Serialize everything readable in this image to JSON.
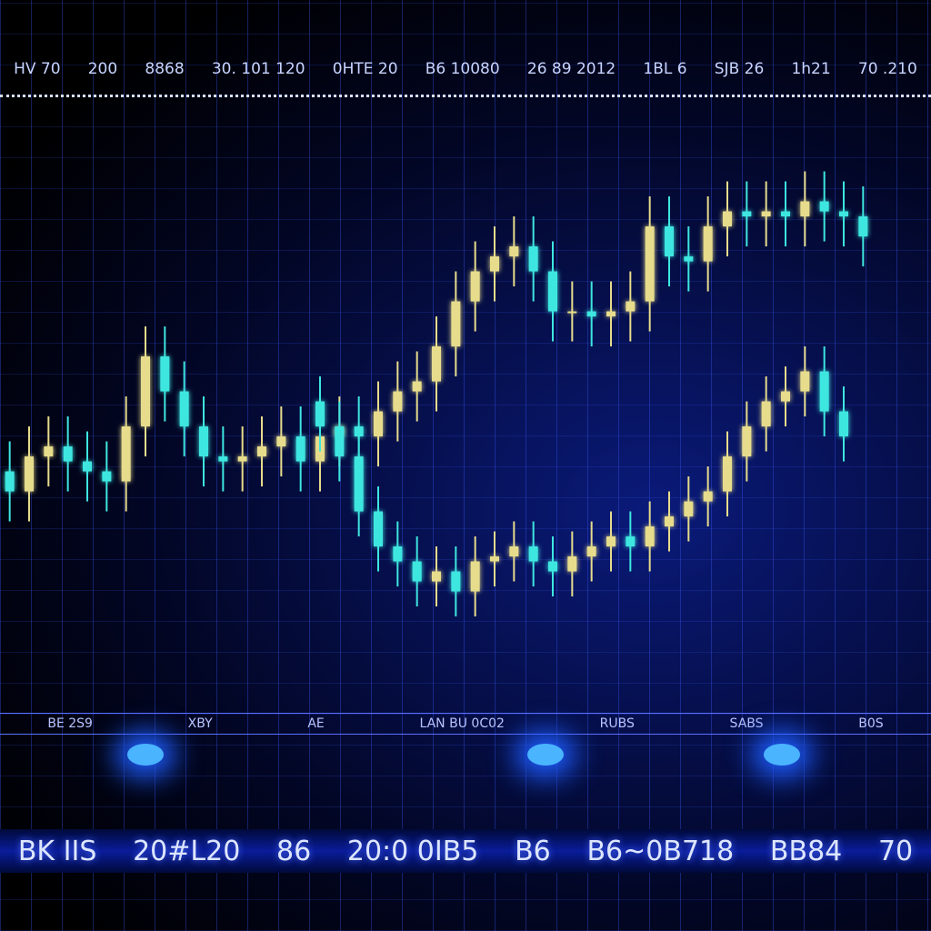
{
  "top_bar": [
    "HV 70",
    "200",
    "8868",
    "30. 101 120",
    "0HTE 20",
    "B6 10080",
    "26 89 2012",
    "1BL 6",
    "SJB 26",
    "1h21",
    "70 .210"
  ],
  "info_strip": [
    "BE 2S9",
    "XBY",
    "AE",
    "LAN BU 0C02",
    "RUBS",
    "SABS",
    "B0S"
  ],
  "bottom_bar": [
    "BK IIS",
    "20#L20",
    "86",
    "20:0 0IB5",
    "B6",
    "B6~0B718",
    "BB84",
    "70"
  ],
  "chart_data": {
    "type": "candlestick",
    "categories": [
      null,
      null,
      null,
      null,
      null,
      null,
      null,
      null,
      null,
      null,
      null,
      null,
      null,
      null,
      null,
      null,
      null,
      null,
      null,
      null,
      null,
      null,
      null,
      null,
      null,
      null,
      null,
      null,
      null,
      null,
      null,
      null,
      null,
      null,
      null,
      null,
      null,
      null,
      null,
      null,
      null,
      null,
      null,
      null,
      null
    ],
    "ylim": [
      0,
      100
    ],
    "up_color": "#e6dc8c",
    "down_color": "#3ee6e0",
    "series": [
      {
        "open": [
          33,
          29,
          36,
          38,
          35,
          33,
          31,
          42,
          56,
          49,
          42,
          36,
          35,
          36,
          38,
          40,
          35,
          40,
          42,
          40,
          45,
          49,
          51,
          58,
          67,
          73,
          76,
          78,
          73,
          65,
          65,
          64,
          65,
          67,
          82,
          76,
          75,
          82,
          85,
          84,
          85,
          84,
          87,
          85,
          84
        ],
        "high": [
          39,
          42,
          44,
          44,
          41,
          39,
          48,
          62,
          62,
          55,
          48,
          42,
          42,
          44,
          46,
          46,
          46,
          48,
          48,
          51,
          55,
          57,
          64,
          73,
          79,
          82,
          84,
          84,
          79,
          71,
          71,
          71,
          73,
          88,
          88,
          82,
          88,
          91,
          91,
          91,
          91,
          93,
          93,
          91,
          90
        ],
        "low": [
          23,
          23,
          30,
          29,
          27,
          25,
          25,
          36,
          43,
          36,
          30,
          29,
          29,
          30,
          32,
          29,
          29,
          34,
          34,
          34,
          39,
          43,
          45,
          52,
          61,
          67,
          70,
          67,
          59,
          59,
          58,
          58,
          59,
          61,
          70,
          69,
          69,
          76,
          78,
          78,
          78,
          78,
          79,
          78,
          74
        ],
        "close": [
          29,
          36,
          38,
          35,
          33,
          31,
          42,
          56,
          49,
          42,
          36,
          35,
          36,
          38,
          40,
          35,
          40,
          42,
          40,
          45,
          49,
          51,
          58,
          67,
          73,
          76,
          78,
          73,
          65,
          65,
          64,
          65,
          67,
          82,
          76,
          75,
          82,
          85,
          84,
          85,
          84,
          87,
          85,
          84,
          80
        ]
      },
      {
        "open": [
          null,
          null,
          null,
          null,
          null,
          null,
          null,
          null,
          null,
          null,
          null,
          null,
          null,
          null,
          null,
          null,
          47,
          42,
          36,
          25,
          18,
          15,
          11,
          13,
          9,
          15,
          16,
          18,
          15,
          13,
          16,
          18,
          20,
          18,
          22,
          24,
          27,
          29,
          36,
          42,
          47,
          49,
          53,
          45,
          null
        ],
        "high": [
          null,
          null,
          null,
          null,
          null,
          null,
          null,
          null,
          null,
          null,
          null,
          null,
          null,
          null,
          null,
          null,
          52,
          47,
          41,
          30,
          23,
          20,
          18,
          18,
          20,
          21,
          23,
          23,
          20,
          21,
          23,
          25,
          25,
          27,
          29,
          32,
          34,
          41,
          47,
          52,
          54,
          58,
          58,
          50,
          null
        ],
        "low": [
          null,
          null,
          null,
          null,
          null,
          null,
          null,
          null,
          null,
          null,
          null,
          null,
          null,
          null,
          null,
          null,
          37,
          31,
          20,
          13,
          10,
          6,
          6,
          4,
          4,
          10,
          11,
          10,
          8,
          8,
          11,
          13,
          13,
          13,
          17,
          19,
          22,
          24,
          31,
          37,
          42,
          44,
          40,
          35,
          null
        ],
        "close": [
          null,
          null,
          null,
          null,
          null,
          null,
          null,
          null,
          null,
          null,
          null,
          null,
          null,
          null,
          null,
          null,
          42,
          36,
          25,
          18,
          15,
          11,
          13,
          9,
          15,
          16,
          18,
          15,
          13,
          16,
          18,
          20,
          18,
          22,
          24,
          27,
          29,
          36,
          42,
          47,
          49,
          53,
          45,
          40,
          null
        ]
      }
    ]
  }
}
